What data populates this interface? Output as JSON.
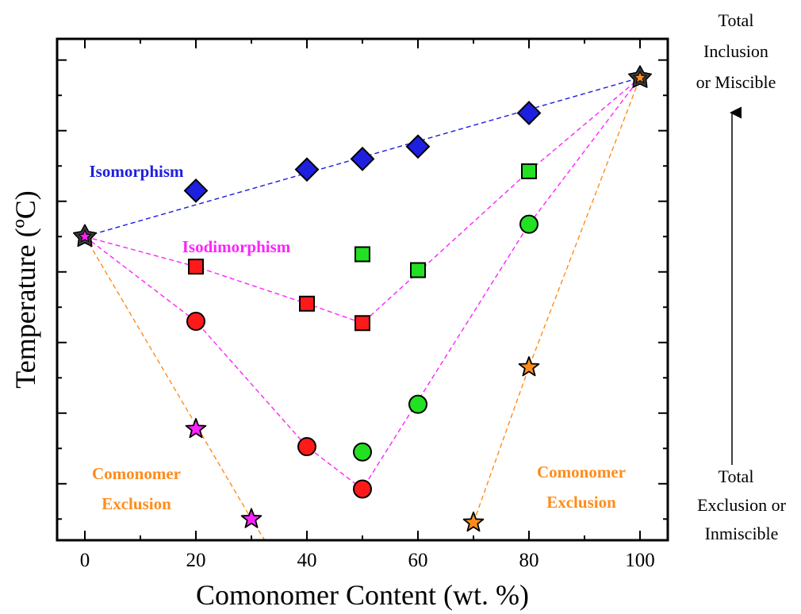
{
  "chart_data": {
    "type": "scatter",
    "title": "",
    "xlabel": "Comonomer Content (wt. %)",
    "ylabel": "Temperature (ºC)",
    "xlim": [
      -5,
      105
    ],
    "xticks": [
      "0",
      "20",
      "40",
      "60",
      "80",
      "100"
    ],
    "xtick_values": [
      0,
      20,
      40,
      60,
      80,
      100
    ],
    "y_tick_labels_shown": false,
    "annotations": {
      "isomorphism": "Isomorphism",
      "isodimorphism": "Isodimorphism",
      "exclusion_left_1": "Comonomer",
      "exclusion_left_2": "Exclusion",
      "exclusion_right_1": "Comonomer",
      "exclusion_right_2": "Exclusion"
    },
    "side_notes": {
      "top_1": "Total",
      "top_2": "Inclusion",
      "top_3": "or Miscible",
      "bottom_1": "Total",
      "bottom_2": "Exclusion or",
      "bottom_3": "Inmiscible"
    },
    "colors": {
      "blue": "#1f1fe0",
      "red": "#ff1a1a",
      "green": "#22e022",
      "magenta": "#ff22ff",
      "orange": "#ff8c1a",
      "dark_star": "#3a3a3a"
    },
    "series": [
      {
        "marker": "diamond",
        "color": "blue",
        "points": [
          [
            20,
            6.3
          ],
          [
            40,
            6.9
          ],
          [
            50,
            7.2
          ],
          [
            60,
            7.55
          ],
          [
            80,
            8.5
          ]
        ]
      },
      {
        "marker": "square",
        "color": "red",
        "points": [
          [
            20,
            4.15
          ],
          [
            40,
            3.1
          ],
          [
            50,
            2.55
          ]
        ]
      },
      {
        "marker": "square",
        "color": "green",
        "points": [
          [
            50,
            4.5
          ],
          [
            60,
            4.05
          ],
          [
            80,
            6.85
          ]
        ]
      },
      {
        "marker": "circle",
        "color": "red",
        "points": [
          [
            20,
            2.6
          ],
          [
            40,
            -0.95
          ],
          [
            50,
            -2.15
          ]
        ]
      },
      {
        "marker": "circle",
        "color": "green",
        "points": [
          [
            50,
            -1.1
          ],
          [
            60,
            0.25
          ],
          [
            80,
            5.35
          ]
        ]
      },
      {
        "marker": "star",
        "color": "magenta",
        "points": [
          [
            20,
            -0.45
          ],
          [
            30,
            -3.0
          ]
        ]
      },
      {
        "marker": "star",
        "color": "orange",
        "points": [
          [
            70,
            -3.1
          ],
          [
            80,
            1.3
          ]
        ]
      },
      {
        "marker": "star-endpoint",
        "color": "magenta",
        "points": [
          [
            0,
            5.0
          ]
        ]
      },
      {
        "marker": "star-endpoint",
        "color": "orange",
        "points": [
          [
            100,
            9.5
          ]
        ]
      }
    ],
    "dashed_lines": [
      {
        "color": "blue",
        "points": [
          [
            0,
            5.0
          ],
          [
            100,
            9.5
          ]
        ]
      },
      {
        "color": "magenta",
        "points": [
          [
            0,
            5.0
          ],
          [
            20,
            4.15
          ],
          [
            40,
            3.1
          ],
          [
            50,
            2.55
          ],
          [
            80,
            6.85
          ],
          [
            100,
            9.5
          ]
        ]
      },
      {
        "color": "magenta",
        "points": [
          [
            0,
            5.0
          ],
          [
            20,
            2.6
          ],
          [
            40,
            -0.95
          ],
          [
            50,
            -2.15
          ],
          [
            80,
            5.35
          ],
          [
            100,
            9.5
          ]
        ]
      },
      {
        "color": "orange",
        "points": [
          [
            0,
            5.0
          ],
          [
            30,
            -3.0
          ],
          [
            32.4,
            -3.6
          ]
        ]
      },
      {
        "color": "orange",
        "points": [
          [
            70,
            -3.1
          ],
          [
            80,
            1.3
          ],
          [
            100,
            9.5
          ]
        ]
      }
    ],
    "ylim": [
      -3.6,
      10.6
    ]
  }
}
